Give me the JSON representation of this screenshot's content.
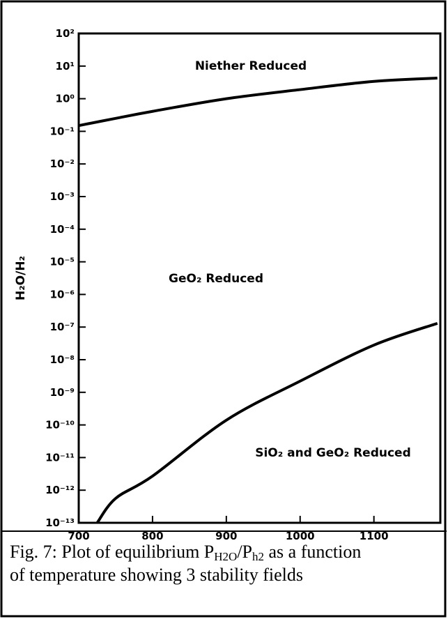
{
  "chart_data": {
    "type": "line",
    "ylabel": "H₂O/H₂",
    "log_y": true,
    "xlim": [
      700,
      1190
    ],
    "ylim": [
      1e-13,
      100
    ],
    "xticks": [
      700,
      800,
      900,
      1000,
      1100
    ],
    "yticks": [
      {
        "value": 100,
        "label": "10²"
      },
      {
        "value": 10,
        "label": "10¹"
      },
      {
        "value": 1,
        "label": "10⁰"
      },
      {
        "value": 0.1,
        "label": "10⁻¹"
      },
      {
        "value": 0.01,
        "label": "10⁻²"
      },
      {
        "value": 0.001,
        "label": "10⁻³"
      },
      {
        "value": 0.0001,
        "label": "10⁻⁴"
      },
      {
        "value": 1e-05,
        "label": "10⁻⁵"
      },
      {
        "value": 1e-06,
        "label": "10⁻⁶"
      },
      {
        "value": 1e-07,
        "label": "10⁻⁷"
      },
      {
        "value": 1e-08,
        "label": "10⁻⁸"
      },
      {
        "value": 1e-09,
        "label": "10⁻⁹"
      },
      {
        "value": 1e-10,
        "label": "10⁻¹⁰"
      },
      {
        "value": 1e-11,
        "label": "10⁻¹¹"
      },
      {
        "value": 1e-12,
        "label": "10⁻¹²"
      },
      {
        "value": 1e-13,
        "label": "10⁻¹³"
      }
    ],
    "series": [
      {
        "color": "#000000",
        "x": [
          700,
          750,
          800,
          900,
          1000,
          1100,
          1186
        ],
        "values": [
          0.15,
          0.25,
          0.41,
          1.0,
          1.9,
          3.4,
          4.3
        ]
      },
      {
        "color": "#000000",
        "x": [
          725,
          750,
          800,
          900,
          1000,
          1100,
          1186
        ],
        "values": [
          1e-13,
          5.6e-13,
          2.7e-12,
          1.4e-10,
          2.2e-09,
          2.8e-08,
          1.3e-07
        ]
      }
    ],
    "annotations": [
      "Niether Reduced",
      "GeO₂ Reduced",
      "SiO₂ and GeO₂ Reduced"
    ],
    "caption": [
      [
        "Fig. 7:  Plot of equilibrium P",
        "H2O",
        "/P",
        "h2",
        " as a function"
      ],
      [
        "of temperature showing 3 stability fields"
      ]
    ]
  }
}
